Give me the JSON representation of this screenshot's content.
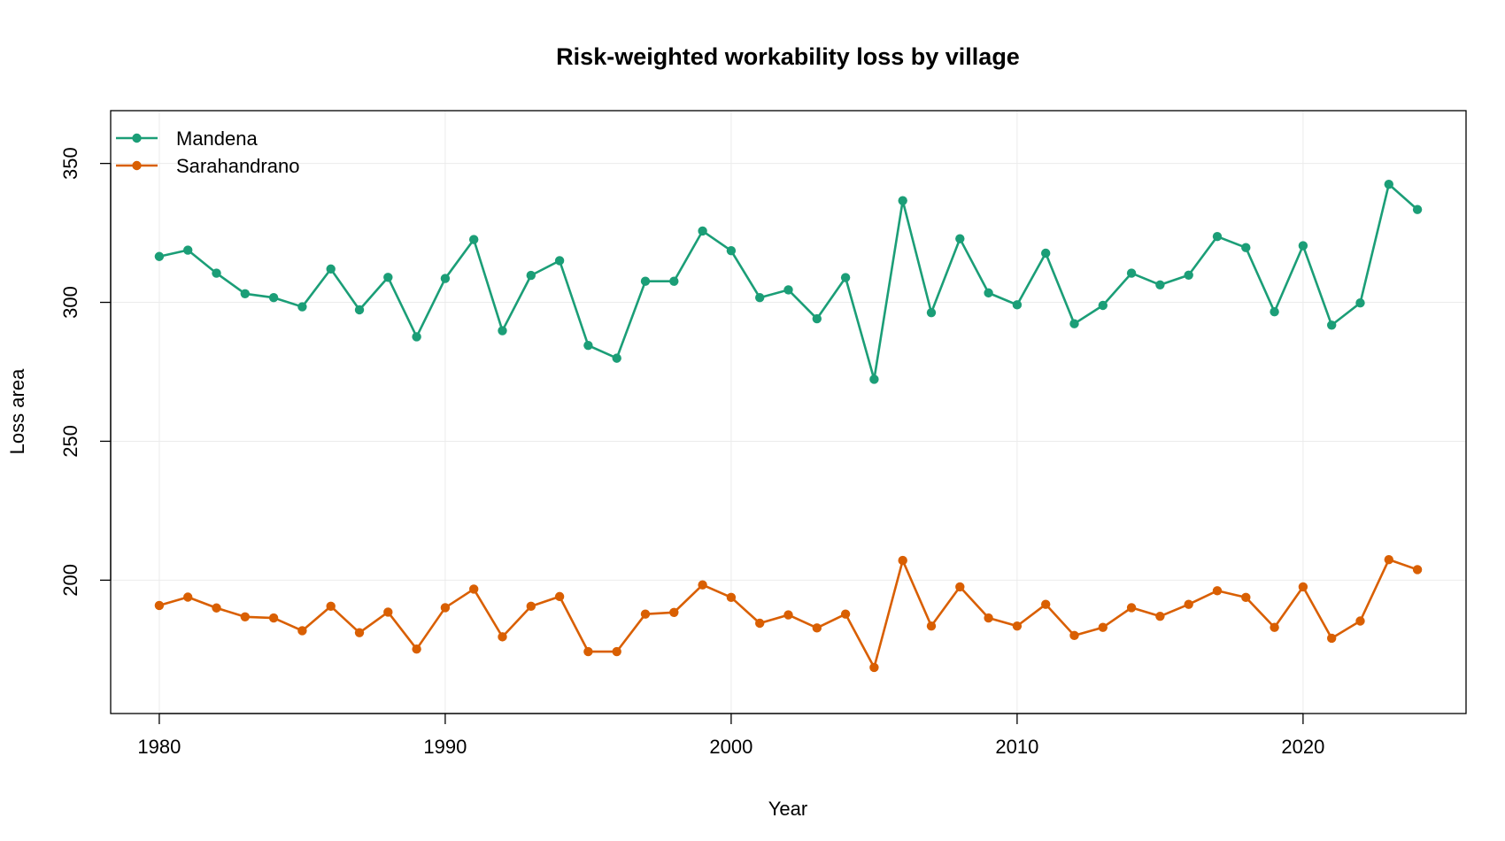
{
  "chart_data": {
    "type": "line",
    "title": "Risk-weighted workability loss by village",
    "xlabel": "Year",
    "ylabel": "Loss area",
    "xlim": [
      1978.3,
      2025.7
    ],
    "ylim": [
      152,
      369
    ],
    "xticks": [
      1980,
      1990,
      2000,
      2010,
      2020
    ],
    "yticks": [
      200,
      250,
      300,
      350
    ],
    "grid": true,
    "legend_position": "top-left",
    "x": [
      1980,
      1981,
      1982,
      1983,
      1984,
      1985,
      1986,
      1987,
      1988,
      1989,
      1990,
      1991,
      1992,
      1993,
      1994,
      1995,
      1996,
      1997,
      1998,
      1999,
      2000,
      2001,
      2002,
      2003,
      2004,
      2005,
      2006,
      2007,
      2008,
      2009,
      2010,
      2011,
      2012,
      2013,
      2014,
      2015,
      2016,
      2017,
      2018,
      2019,
      2020,
      2021,
      2022,
      2023,
      2024
    ],
    "series": [
      {
        "name": "Mandena",
        "color": "#1b9e77",
        "values": [
          316.5,
          318.8,
          310.5,
          303.1,
          301.7,
          298.4,
          312,
          297.3,
          309,
          287.6,
          308.6,
          322.6,
          289.8,
          309.7,
          315,
          284.5,
          279.9,
          307.6,
          307.6,
          325.7,
          318.6,
          301.7,
          304.5,
          294.1,
          308.9,
          272.3,
          336.6,
          296.3,
          322.9,
          303.4,
          299.1,
          317.7,
          292.3,
          298.9,
          310.5,
          306.3,
          309.8,
          323.7,
          319.7,
          296.6,
          320.4,
          291.8,
          299.8,
          342.5,
          333.4
        ]
      },
      {
        "name": "Sarahandrano",
        "color": "#d95f02",
        "values": [
          190.9,
          193.9,
          190,
          186.8,
          186.4,
          181.8,
          190.6,
          181.1,
          188.5,
          175.2,
          190.1,
          196.8,
          179.6,
          190.6,
          194.1,
          174.3,
          174.3,
          187.8,
          188.4,
          198.3,
          193.8,
          184.5,
          187.5,
          182.8,
          187.8,
          168.6,
          207.1,
          183.5,
          197.6,
          186.4,
          183.5,
          191.3,
          180.1,
          183,
          190.1,
          187,
          191.3,
          196.2,
          193.8,
          183,
          197.6,
          179.1,
          185.3,
          207.4,
          203.8
        ]
      }
    ]
  }
}
